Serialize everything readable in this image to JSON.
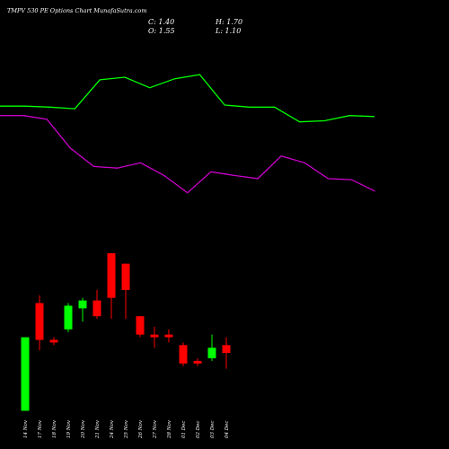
{
  "title": "TMPV 530 PE Options Chart MunafaSutra.com",
  "ohlc": {
    "close": "C: 1.40",
    "high": "H: 1.70",
    "open": "O: 1.55",
    "low": "L: 1.10"
  },
  "colors": {
    "background": "#000000",
    "up": "#00ff00",
    "down": "#ff0000",
    "upper_line": "#00ff00",
    "lower_line": "#cc00cc",
    "text": "#ffffff"
  },
  "chart_data": {
    "type": "candlestick",
    "categories": [
      "14 Nov",
      "17 Nov",
      "18 Nov",
      "19 Nov",
      "20 Nov",
      "21 Nov",
      "24 Nov",
      "25 Nov",
      "26 Nov",
      "27 Nov",
      "28 Nov",
      "01 Dec",
      "02 Dec",
      "03 Dec",
      "04 Dec"
    ],
    "candles": [
      {
        "open": 0.3,
        "close": 1.7,
        "high": 1.7,
        "low": 0.3,
        "direction": "up"
      },
      {
        "open": 2.35,
        "close": 1.65,
        "high": 2.5,
        "low": 1.45,
        "direction": "down"
      },
      {
        "open": 1.65,
        "close": 1.6,
        "high": 1.7,
        "low": 1.55,
        "direction": "down"
      },
      {
        "open": 1.85,
        "close": 2.3,
        "high": 2.35,
        "low": 1.8,
        "direction": "up"
      },
      {
        "open": 2.25,
        "close": 2.4,
        "high": 2.45,
        "low": 2.0,
        "direction": "up"
      },
      {
        "open": 2.4,
        "close": 2.1,
        "high": 2.6,
        "low": 2.05,
        "direction": "down"
      },
      {
        "open": 3.3,
        "close": 2.45,
        "high": 3.3,
        "low": 2.05,
        "direction": "down"
      },
      {
        "open": 3.1,
        "close": 2.6,
        "high": 3.1,
        "low": 2.05,
        "direction": "down"
      },
      {
        "open": 2.1,
        "close": 1.75,
        "high": 2.1,
        "low": 1.7,
        "direction": "down"
      },
      {
        "open": 1.75,
        "close": 1.7,
        "high": 1.9,
        "low": 1.5,
        "direction": "down"
      },
      {
        "open": 1.75,
        "close": 1.7,
        "high": 1.85,
        "low": 1.6,
        "direction": "down"
      },
      {
        "open": 1.55,
        "close": 1.2,
        "high": 1.6,
        "low": 1.15,
        "direction": "down"
      },
      {
        "open": 1.25,
        "close": 1.2,
        "high": 1.3,
        "low": 1.15,
        "direction": "down"
      },
      {
        "open": 1.3,
        "close": 1.5,
        "high": 1.75,
        "low": 1.25,
        "direction": "up"
      },
      {
        "open": 1.55,
        "close": 1.4,
        "high": 1.7,
        "low": 1.1,
        "direction": "down"
      }
    ],
    "upper_band": [
      6.1,
      6.1,
      6.08,
      6.05,
      6.6,
      6.65,
      6.45,
      6.62,
      6.7,
      6.12,
      6.08,
      6.08,
      5.8,
      5.82,
      5.92,
      5.9
    ],
    "lower_band": [
      5.92,
      5.92,
      5.85,
      5.3,
      4.95,
      4.92,
      5.02,
      4.78,
      4.45,
      4.85,
      4.78,
      4.72,
      5.15,
      5.02,
      4.72,
      4.7,
      4.48
    ],
    "ylim": [
      0,
      8
    ]
  }
}
